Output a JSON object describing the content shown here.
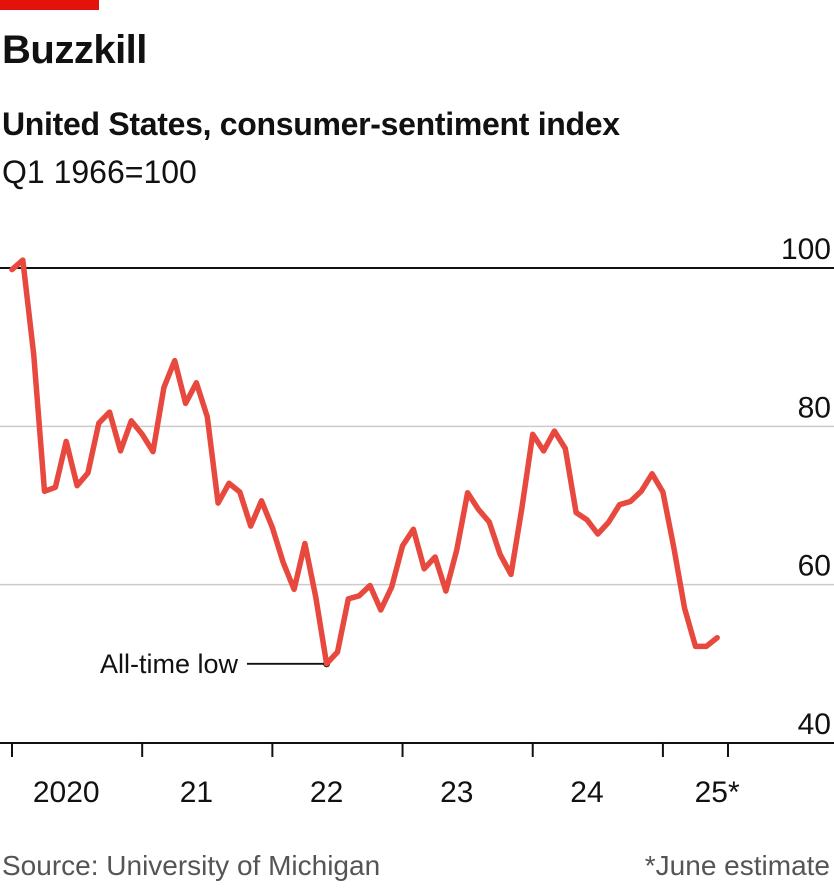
{
  "header": {
    "title": "Buzzkill",
    "subtitle": "United States, consumer-sentiment index",
    "unit": "Q1 1966=100"
  },
  "footer": {
    "source": "Source: University of Michigan",
    "note": "*June estimate"
  },
  "colors": {
    "accent": "#e3120b",
    "line": "#e8493f",
    "grid": "#cccccc",
    "baseline": "#111111",
    "text": "#111111",
    "footer_text": "#555555"
  },
  "chart_data": {
    "type": "line",
    "title": "Buzzkill",
    "subtitle": "United States, consumer-sentiment index",
    "ylabel": "Q1 1966=100",
    "ylim": [
      40,
      100
    ],
    "yticks": [
      {
        "value": 100,
        "label": "100"
      },
      {
        "value": 80,
        "label": "80"
      },
      {
        "value": 60,
        "label": "60"
      },
      {
        "value": 40,
        "label": "40"
      }
    ],
    "xlim": [
      "2019-12",
      "2025-07"
    ],
    "xtick_labels": [
      {
        "x": "2020-06",
        "label": "2020"
      },
      {
        "x": "2021-06",
        "label": "21"
      },
      {
        "x": "2022-06",
        "label": "22"
      },
      {
        "x": "2023-06",
        "label": "23"
      },
      {
        "x": "2024-06",
        "label": "24"
      },
      {
        "x": "2025-06",
        "label": "25*"
      }
    ],
    "xtick_marks": [
      "2020-01",
      "2021-01",
      "2022-01",
      "2023-01",
      "2024-01",
      "2025-01",
      "2025-07"
    ],
    "grid": true,
    "series": [
      {
        "x": [
          "2020-01",
          "2020-02",
          "2020-03",
          "2020-04",
          "2020-05",
          "2020-06",
          "2020-07",
          "2020-08",
          "2020-09",
          "2020-10",
          "2020-11",
          "2020-12",
          "2021-01",
          "2021-02",
          "2021-03",
          "2021-04",
          "2021-05",
          "2021-06",
          "2021-07",
          "2021-08",
          "2021-09",
          "2021-10",
          "2021-11",
          "2021-12",
          "2022-01",
          "2022-02",
          "2022-03",
          "2022-04",
          "2022-05",
          "2022-06",
          "2022-07",
          "2022-08",
          "2022-09",
          "2022-10",
          "2022-11",
          "2022-12",
          "2023-01",
          "2023-02",
          "2023-03",
          "2023-04",
          "2023-05",
          "2023-06",
          "2023-07",
          "2023-08",
          "2023-09",
          "2023-10",
          "2023-11",
          "2023-12",
          "2024-01",
          "2024-02",
          "2024-03",
          "2024-04",
          "2024-05",
          "2024-06",
          "2024-07",
          "2024-08",
          "2024-09",
          "2024-10",
          "2024-11",
          "2024-12",
          "2025-01",
          "2025-02",
          "2025-03",
          "2025-04",
          "2025-05",
          "2025-06"
        ],
        "values": [
          99.8,
          101.0,
          89.1,
          71.8,
          72.3,
          78.1,
          72.5,
          74.1,
          80.4,
          81.8,
          76.9,
          80.7,
          79.0,
          76.8,
          84.9,
          88.3,
          82.9,
          85.5,
          81.2,
          70.3,
          72.8,
          71.7,
          67.4,
          70.6,
          67.2,
          62.8,
          59.4,
          65.2,
          58.4,
          50.0,
          51.5,
          58.2,
          58.6,
          59.9,
          56.8,
          59.7,
          64.9,
          67.0,
          62.0,
          63.5,
          59.2,
          64.4,
          71.6,
          69.5,
          67.9,
          63.8,
          61.3,
          69.7,
          79.0,
          76.9,
          79.4,
          77.2,
          69.1,
          68.2,
          66.4,
          67.9,
          70.1,
          70.5,
          71.8,
          74.0,
          71.7,
          64.7,
          57.0,
          52.2,
          52.2,
          53.3
        ]
      }
    ],
    "annotations": [
      {
        "text": "All-time low",
        "x": "2022-06",
        "y": 50.0
      }
    ]
  }
}
